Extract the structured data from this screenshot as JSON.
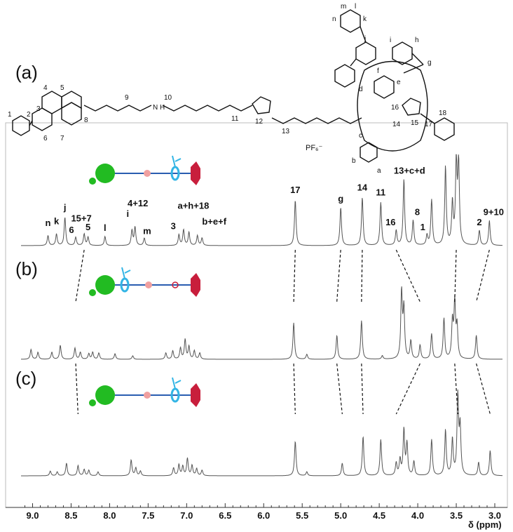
{
  "chart_data": {
    "type": "line",
    "xlabel": "δ (ppm)",
    "x_range": [
      9.15,
      2.9
    ],
    "x_reversed": true,
    "x_ticks": [
      "9.0",
      "8.5",
      "8.0",
      "7.5",
      "7.0",
      "6.5",
      "6.0",
      "5.5",
      "5.0",
      "4.5",
      "4.0",
      "3.5",
      "3.0"
    ],
    "grid": false,
    "panels": [
      {
        "label": "(b)",
        "peaks": [
          {
            "x": 9.02,
            "h": 0.14
          },
          {
            "x": 8.93,
            "h": 0.1
          },
          {
            "x": 8.75,
            "h": 0.1
          },
          {
            "x": 8.64,
            "h": 0.2
          },
          {
            "x": 8.45,
            "h": 0.16
          },
          {
            "x": 8.38,
            "h": 0.1
          },
          {
            "x": 8.27,
            "h": 0.08
          },
          {
            "x": 8.22,
            "h": 0.1
          },
          {
            "x": 8.14,
            "h": 0.09
          },
          {
            "x": 7.93,
            "h": 0.08
          },
          {
            "x": 7.7,
            "h": 0.05
          },
          {
            "x": 7.27,
            "h": 0.09
          },
          {
            "x": 7.18,
            "h": 0.12
          },
          {
            "x": 7.08,
            "h": 0.16
          },
          {
            "x": 7.02,
            "h": 0.28
          },
          {
            "x": 6.97,
            "h": 0.18
          },
          {
            "x": 6.9,
            "h": 0.12
          },
          {
            "x": 6.83,
            "h": 0.09
          },
          {
            "x": 5.61,
            "h": 0.52
          },
          {
            "x": 5.44,
            "h": 0.07
          },
          {
            "x": 5.05,
            "h": 0.34
          },
          {
            "x": 4.73,
            "h": 0.55
          },
          {
            "x": 4.46,
            "h": 0.05
          },
          {
            "x": 4.21,
            "h": 0.95
          },
          {
            "x": 4.18,
            "h": 0.7
          },
          {
            "x": 4.09,
            "h": 0.26
          },
          {
            "x": 3.97,
            "h": 0.2
          },
          {
            "x": 3.82,
            "h": 0.36
          },
          {
            "x": 3.66,
            "h": 0.58
          },
          {
            "x": 3.55,
            "h": 0.52
          },
          {
            "x": 3.52,
            "h": 0.78
          },
          {
            "x": 3.49,
            "h": 0.45
          },
          {
            "x": 3.24,
            "h": 0.34
          }
        ]
      },
      {
        "label": "(c)",
        "peaks": [
          {
            "x": 8.77,
            "h": 0.06
          },
          {
            "x": 8.68,
            "h": 0.05
          },
          {
            "x": 8.56,
            "h": 0.16
          },
          {
            "x": 8.41,
            "h": 0.13
          },
          {
            "x": 8.33,
            "h": 0.08
          },
          {
            "x": 8.27,
            "h": 0.07
          },
          {
            "x": 8.15,
            "h": 0.05
          },
          {
            "x": 7.72,
            "h": 0.2
          },
          {
            "x": 7.66,
            "h": 0.1
          },
          {
            "x": 7.6,
            "h": 0.06
          },
          {
            "x": 7.17,
            "h": 0.1
          },
          {
            "x": 7.1,
            "h": 0.14
          },
          {
            "x": 7.05,
            "h": 0.12
          },
          {
            "x": 6.99,
            "h": 0.22
          },
          {
            "x": 6.93,
            "h": 0.13
          },
          {
            "x": 6.87,
            "h": 0.09
          },
          {
            "x": 6.8,
            "h": 0.07
          },
          {
            "x": 5.59,
            "h": 0.44
          },
          {
            "x": 5.44,
            "h": 0.05
          },
          {
            "x": 4.98,
            "h": 0.16
          },
          {
            "x": 4.71,
            "h": 0.5
          },
          {
            "x": 4.48,
            "h": 0.46
          },
          {
            "x": 4.28,
            "h": 0.16
          },
          {
            "x": 4.23,
            "h": 0.2
          },
          {
            "x": 4.18,
            "h": 0.58
          },
          {
            "x": 4.14,
            "h": 0.4
          },
          {
            "x": 4.05,
            "h": 0.18
          },
          {
            "x": 3.82,
            "h": 0.46
          },
          {
            "x": 3.64,
            "h": 0.58
          },
          {
            "x": 3.55,
            "h": 0.46
          },
          {
            "x": 3.48,
            "h": 1.0
          },
          {
            "x": 3.45,
            "h": 0.6
          },
          {
            "x": 3.21,
            "h": 0.17
          },
          {
            "x": 3.06,
            "h": 0.32
          }
        ]
      }
    ],
    "top_spectrum": {
      "label": "(a)",
      "peaks": [
        {
          "x": 8.8,
          "h": 0.12,
          "label": "n"
        },
        {
          "x": 8.69,
          "h": 0.14,
          "label": "k"
        },
        {
          "x": 8.58,
          "h": 0.34,
          "label": "j"
        },
        {
          "x": 8.44,
          "h": 0.1,
          "label": "6"
        },
        {
          "x": 8.33,
          "h": 0.14,
          "label": "15+7"
        },
        {
          "x": 8.28,
          "h": 0.1,
          "label": "5"
        },
        {
          "x": 8.06,
          "h": 0.11,
          "label": "l"
        },
        {
          "x": 7.71,
          "h": 0.18,
          "label": "i"
        },
        {
          "x": 7.67,
          "h": 0.22,
          "label": "4+12"
        },
        {
          "x": 7.55,
          "h": 0.09,
          "label": "m"
        },
        {
          "x": 7.1,
          "h": 0.13,
          "label": "3"
        },
        {
          "x": 7.04,
          "h": 0.19,
          "label": "a+h+18"
        },
        {
          "x": 6.97,
          "h": 0.16
        },
        {
          "x": 6.86,
          "h": 0.12,
          "label": "b+e+f"
        },
        {
          "x": 6.8,
          "h": 0.09
        },
        {
          "x": 5.59,
          "h": 0.55,
          "label": "17"
        },
        {
          "x": 5.0,
          "h": 0.46,
          "label": "g"
        },
        {
          "x": 4.72,
          "h": 0.58,
          "label": "14"
        },
        {
          "x": 4.48,
          "h": 0.52,
          "label": "11"
        },
        {
          "x": 4.28,
          "h": 0.18,
          "label": "16"
        },
        {
          "x": 4.18,
          "h": 0.8,
          "label": "13+c+d"
        },
        {
          "x": 4.06,
          "h": 0.3,
          "label": "8"
        },
        {
          "x": 3.88,
          "h": 0.12,
          "label": "1"
        },
        {
          "x": 3.82,
          "h": 0.55
        },
        {
          "x": 3.64,
          "h": 0.95
        },
        {
          "x": 3.55,
          "h": 0.5
        },
        {
          "x": 3.5,
          "h": 1.0
        },
        {
          "x": 3.47,
          "h": 0.98
        },
        {
          "x": 3.2,
          "h": 0.18,
          "label": "2"
        },
        {
          "x": 3.07,
          "h": 0.3,
          "label": "9+10"
        }
      ]
    },
    "molecule_labels": [
      "1",
      "2",
      "3",
      "4",
      "5",
      "6",
      "7",
      "8",
      "9",
      "10",
      "11",
      "12",
      "13",
      "14",
      "15",
      "16",
      "17",
      "18",
      "a",
      "b",
      "c",
      "d",
      "e",
      "f",
      "g",
      "h",
      "i",
      "j",
      "k",
      "l",
      "m",
      "n"
    ],
    "counterion": "PF₆⁻",
    "amine_label": "N\nH"
  }
}
